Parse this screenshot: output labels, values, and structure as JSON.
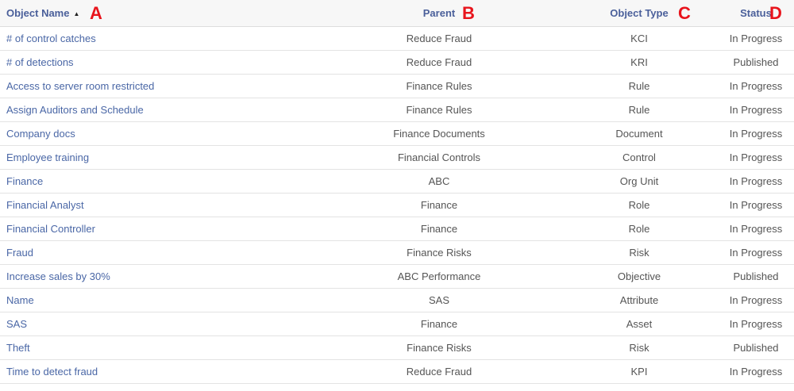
{
  "headers": {
    "name": "Object Name",
    "parent": "Parent",
    "type": "Object Type",
    "status": "Status"
  },
  "markers": {
    "a": "A",
    "b": "B",
    "c": "C",
    "d": "D"
  },
  "sort_icon": "sort-ascending-icon",
  "rows": [
    {
      "name": "# of control catches",
      "parent": "Reduce Fraud",
      "type": "KCI",
      "status": "In Progress"
    },
    {
      "name": "# of detections",
      "parent": "Reduce Fraud",
      "type": "KRI",
      "status": "Published"
    },
    {
      "name": "Access to server room restricted",
      "parent": "Finance Rules",
      "type": "Rule",
      "status": "In Progress"
    },
    {
      "name": "Assign Auditors and Schedule",
      "parent": "Finance Rules",
      "type": "Rule",
      "status": "In Progress"
    },
    {
      "name": "Company docs",
      "parent": "Finance Documents",
      "type": "Document",
      "status": "In Progress"
    },
    {
      "name": "Employee training",
      "parent": "Financial Controls",
      "type": "Control",
      "status": "In Progress"
    },
    {
      "name": "Finance",
      "parent": "ABC",
      "type": "Org Unit",
      "status": "In Progress"
    },
    {
      "name": "Financial Analyst",
      "parent": "Finance",
      "type": "Role",
      "status": "In Progress"
    },
    {
      "name": "Financial Controller",
      "parent": "Finance",
      "type": "Role",
      "status": "In Progress"
    },
    {
      "name": "Fraud",
      "parent": "Finance Risks",
      "type": "Risk",
      "status": "In Progress"
    },
    {
      "name": "Increase sales by 30%",
      "parent": "ABC Performance",
      "type": "Objective",
      "status": "Published"
    },
    {
      "name": "Name",
      "parent": "SAS",
      "type": "Attribute",
      "status": "In Progress"
    },
    {
      "name": "SAS",
      "parent": "Finance",
      "type": "Asset",
      "status": "In Progress"
    },
    {
      "name": "Theft",
      "parent": "Finance Risks",
      "type": "Risk",
      "status": "Published"
    },
    {
      "name": "Time to detect fraud",
      "parent": "Reduce Fraud",
      "type": "KPI",
      "status": "In Progress"
    }
  ]
}
